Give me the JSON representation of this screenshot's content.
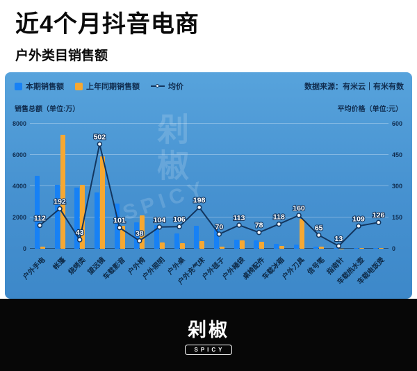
{
  "header": {
    "title": "近4个月抖音电商",
    "subtitle": "户外类目销售额"
  },
  "legend": {
    "current": "本期销售额",
    "previous": "上年同期销售额",
    "avg": "均价"
  },
  "source": "数据来源：有米云｜有米有数",
  "axis_units": {
    "left": "销售总额（单位:万）",
    "right": "平均价格（单位:元）"
  },
  "watermark": {
    "brand": "剁椒",
    "spicy": "SPICY"
  },
  "footer": {
    "brand": "剁椒",
    "badge": "SPICY"
  },
  "colors": {
    "bar_current": "#1781f5",
    "bar_previous": "#f6a832",
    "line": "#13365f",
    "panel_blue": "#4691d0",
    "text_navy": "#102c4e"
  },
  "chart_data": {
    "type": "bar",
    "title": "近4个月抖音电商 户外类目销售额",
    "categories": [
      "户外手电",
      "帐篷",
      "烧烤类",
      "望远镜",
      "车载影音",
      "户外椅",
      "户外照明",
      "户外桌",
      "户外充气床",
      "户外毯子",
      "户外睡袋",
      "桌椅配件",
      "车载冰箱",
      "户外刀具",
      "信号笔",
      "指南针",
      "车载热水壶",
      "车载电饭煲"
    ],
    "series": [
      {
        "name": "本期销售额",
        "type": "bar",
        "axis": "left",
        "values": [
          4650,
          4100,
          3900,
          3600,
          2900,
          1700,
          1500,
          1000,
          1450,
          1250,
          600,
          520,
          300,
          250,
          120,
          35,
          45,
          60
        ]
      },
      {
        "name": "上年同期销售额",
        "type": "bar",
        "axis": "left",
        "values": [
          150,
          7300,
          4100,
          5900,
          1450,
          2150,
          400,
          350,
          500,
          120,
          550,
          430,
          180,
          1900,
          160,
          20,
          30,
          40
        ]
      },
      {
        "name": "均价",
        "type": "line",
        "axis": "right",
        "values": [
          112,
          192,
          43,
          502,
          101,
          38,
          104,
          106,
          198,
          70,
          113,
          78,
          118,
          160,
          65,
          13,
          109,
          126
        ]
      }
    ],
    "left_axis": {
      "label": "销售总额（单位:万）",
      "ticks": [
        0,
        2000,
        4000,
        6000,
        8000
      ],
      "max": 8000
    },
    "right_axis": {
      "label": "平均价格（单位:元）",
      "ticks": [
        0,
        150,
        300,
        450,
        600
      ],
      "max": 600
    },
    "grid": true,
    "legend_position": "top-left"
  }
}
